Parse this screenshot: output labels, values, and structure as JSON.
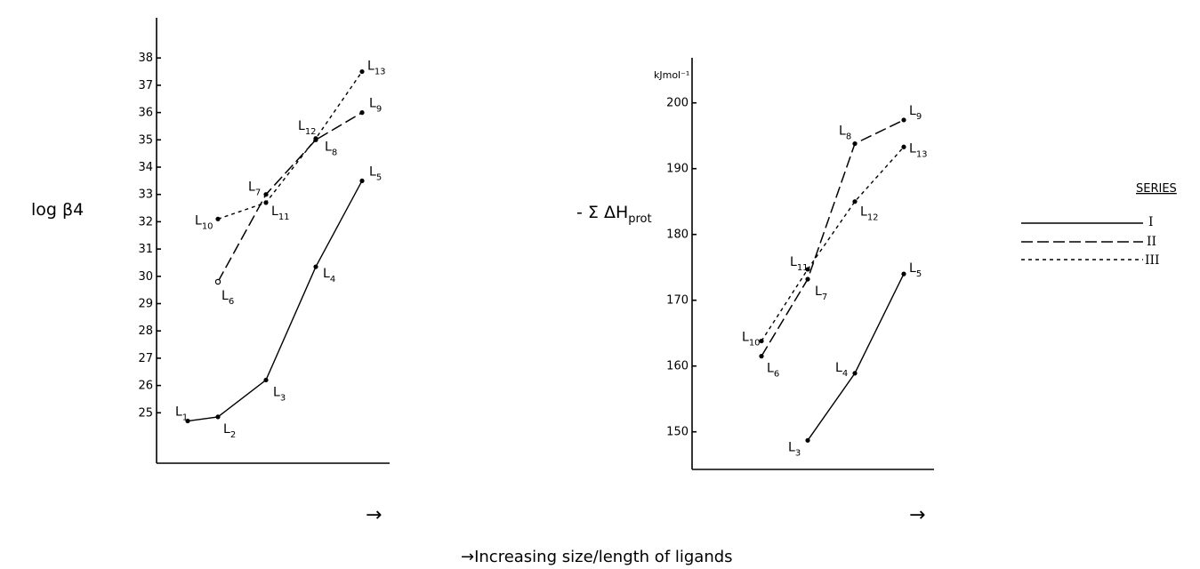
{
  "figure": {
    "caption": "→Increasing  size/length of ligands"
  },
  "legend": {
    "title": "SERIES",
    "entries": [
      {
        "label": "I",
        "style": "solid"
      },
      {
        "label": "II",
        "style": "long-dash"
      },
      {
        "label": "III",
        "style": "short-dash"
      }
    ]
  },
  "chart_data": [
    {
      "type": "line",
      "ylabel": "log β4",
      "xlabel": "→",
      "yticks": [
        25,
        26,
        27,
        28,
        29,
        30,
        31,
        32,
        33,
        34,
        35,
        36,
        37,
        38
      ],
      "ylim": [
        24,
        38
      ],
      "grid": false,
      "series": [
        {
          "name": "I",
          "style": "solid",
          "points": [
            {
              "label": "L1",
              "x": 1,
              "y": 24.7
            },
            {
              "label": "L2",
              "x": 2,
              "y": 24.85
            },
            {
              "label": "L3",
              "x": 3,
              "y": 26.2
            },
            {
              "label": "L4",
              "x": 4,
              "y": 30.35
            },
            {
              "label": "L5",
              "x": 5,
              "y": 33.5
            }
          ]
        },
        {
          "name": "II",
          "style": "long-dash",
          "points": [
            {
              "label": "L6",
              "x": 2,
              "y": 29.8
            },
            {
              "label": "L7",
              "x": 3,
              "y": 33.0
            },
            {
              "label": "L8",
              "x": 4,
              "y": 35.0
            },
            {
              "label": "L9",
              "x": 5,
              "y": 36.0
            }
          ]
        },
        {
          "name": "III",
          "style": "short-dash",
          "points": [
            {
              "label": "L10",
              "x": 2,
              "y": 32.1
            },
            {
              "label": "L11",
              "x": 3,
              "y": 32.7
            },
            {
              "label": "L12",
              "x": 4,
              "y": 35.05
            },
            {
              "label": "L13",
              "x": 5,
              "y": 37.5
            }
          ]
        }
      ]
    },
    {
      "type": "line",
      "ylabel": "- Σ ΔH",
      "ylabel_sub": "prot",
      "unit_label": "kJmol⁻¹",
      "xlabel": "→",
      "yticks": [
        150,
        160,
        170,
        180,
        190,
        200
      ],
      "ylim": [
        146,
        200
      ],
      "grid": false,
      "series": [
        {
          "name": "I",
          "style": "solid",
          "points": [
            {
              "label": "L3",
              "x": 3,
              "y": 148.7
            },
            {
              "label": "L4",
              "x": 4,
              "y": 158.9
            },
            {
              "label": "L5",
              "x": 5,
              "y": 174.0
            }
          ]
        },
        {
          "name": "II",
          "style": "long-dash",
          "points": [
            {
              "label": "L6",
              "x": 2,
              "y": 161.5
            },
            {
              "label": "L7",
              "x": 3,
              "y": 173.2
            },
            {
              "label": "L8",
              "x": 4,
              "y": 193.8
            },
            {
              "label": "L9",
              "x": 5,
              "y": 197.4
            }
          ]
        },
        {
          "name": "III",
          "style": "short-dash",
          "points": [
            {
              "label": "L10",
              "x": 2,
              "y": 163.8
            },
            {
              "label": "L11",
              "x": 3,
              "y": 174.7
            },
            {
              "label": "L12",
              "x": 4,
              "y": 185.0
            },
            {
              "label": "L13",
              "x": 5,
              "y": 193.3
            }
          ]
        }
      ]
    }
  ]
}
